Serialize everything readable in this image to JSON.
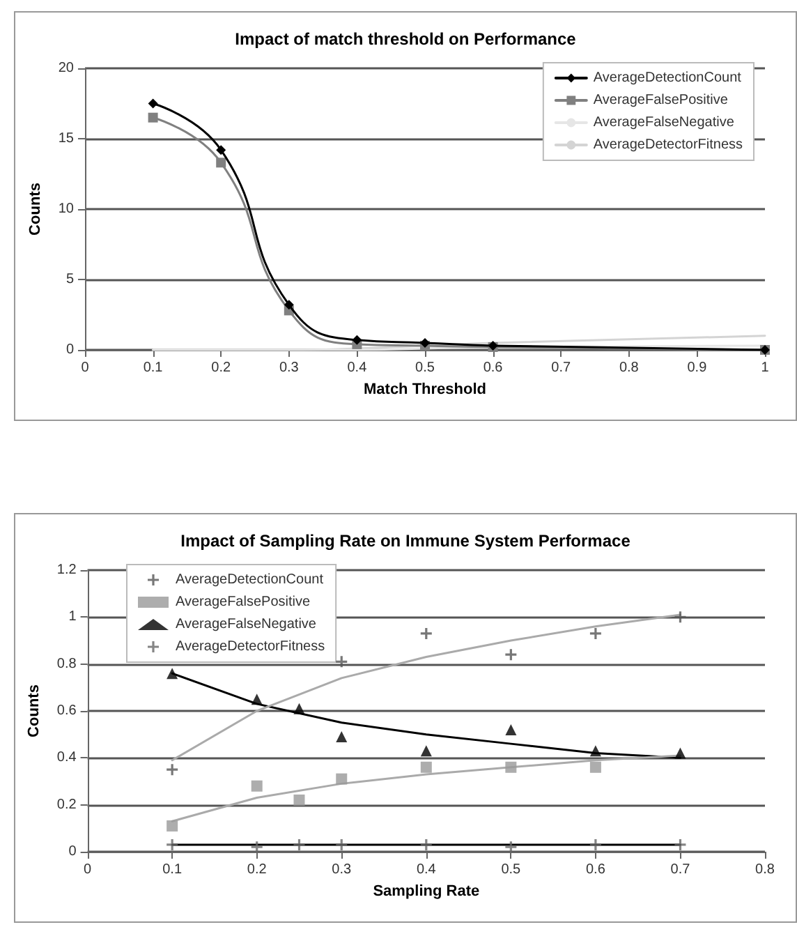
{
  "chart_data": [
    {
      "type": "line",
      "title": "Impact of match threshold on Performance",
      "xlabel": "Match Threshold",
      "ylabel": "Counts",
      "x": [
        0.1,
        0.2,
        0.3,
        0.4,
        0.5,
        0.6,
        1.0
      ],
      "series": [
        {
          "name": "AverageDetectionCount",
          "color": "#000000",
          "marker": "diamond",
          "values": [
            17.5,
            14.2,
            3.2,
            0.7,
            0.5,
            0.3,
            0
          ]
        },
        {
          "name": "AverageFalsePositive",
          "color": "#808080",
          "marker": "square",
          "values": [
            16.5,
            13.3,
            2.8,
            0.4,
            0.3,
            0.2,
            0
          ]
        },
        {
          "name": "AverageFalseNegative",
          "color": "#e6e6e6",
          "marker": "none",
          "values": [
            0,
            0,
            0,
            0,
            0.1,
            0.2,
            0.3
          ]
        },
        {
          "name": "AverageDetectorFitness",
          "color": "#d4d4d4",
          "marker": "none",
          "values": [
            0,
            0,
            0,
            0.1,
            0.3,
            0.5,
            1.0
          ]
        }
      ],
      "xlim": [
        0,
        1
      ],
      "xticks": [
        0,
        0.1,
        0.2,
        0.3,
        0.4,
        0.5,
        0.6,
        0.7,
        0.8,
        0.9,
        1
      ],
      "ylim": [
        0,
        20
      ],
      "yticks": [
        0,
        5,
        10,
        15,
        20
      ],
      "grid": "y",
      "legend": "top right",
      "line_style": "solid"
    },
    {
      "type": "scatter",
      "title": "Impact of Sampling Rate on Immune System Performace",
      "xlabel": "Sampling Rate",
      "ylabel": "Counts",
      "series": [
        {
          "name": "AverageDetectionCount",
          "color": "#555555",
          "marker": "cross",
          "x": [
            0.1,
            0.3,
            0.4,
            0.5,
            0.6,
            0.7
          ],
          "values": [
            0.35,
            0.81,
            0.93,
            0.84,
            0.93,
            1.0
          ]
        },
        {
          "name": "AverageFalsePositive",
          "color": "#999999",
          "marker": "square",
          "x": [
            0.1,
            0.2,
            0.25,
            0.3,
            0.4,
            0.5,
            0.6
          ],
          "values": [
            0.11,
            0.28,
            0.22,
            0.31,
            0.36,
            0.36,
            0.36
          ]
        },
        {
          "name": "AverageFalseNegative",
          "color": "#000000",
          "marker": "triangle",
          "x": [
            0.1,
            0.2,
            0.25,
            0.3,
            0.4,
            0.5,
            0.6,
            0.7
          ],
          "values": [
            0.76,
            0.65,
            0.61,
            0.49,
            0.43,
            0.52,
            0.43,
            0.42
          ]
        },
        {
          "name": "AverageDetectorFitness",
          "color": "#666666",
          "marker": "cross",
          "x": [
            0.1,
            0.2,
            0.25,
            0.3,
            0.4,
            0.5,
            0.6,
            0.7
          ],
          "values": [
            0.03,
            0.02,
            0.03,
            0.03,
            0.03,
            0.02,
            0.03,
            0.03
          ]
        },
        {
          "type": "line",
          "color": "#aaaaaa",
          "marker": "none",
          "x": [
            0.1,
            0.2,
            0.3,
            0.4,
            0.5,
            0.6,
            0.7
          ],
          "values": [
            0.39,
            0.6,
            0.74,
            0.83,
            0.9,
            0.96,
            1.01
          ]
        },
        {
          "type": "line",
          "color": "#aaaaaa",
          "marker": "none",
          "x": [
            0.1,
            0.2,
            0.3,
            0.4,
            0.5,
            0.6,
            0.7
          ],
          "values": [
            0.13,
            0.23,
            0.29,
            0.33,
            0.36,
            0.39,
            0.41
          ]
        },
        {
          "type": "line",
          "color": "#000000",
          "marker": "none",
          "x": [
            0.1,
            0.2,
            0.3,
            0.4,
            0.5,
            0.6,
            0.7
          ],
          "values": [
            0.76,
            0.63,
            0.55,
            0.5,
            0.46,
            0.42,
            0.4
          ]
        },
        {
          "type": "line",
          "color": "#000000",
          "marker": "none",
          "x": [
            0.1,
            0.7
          ],
          "values": [
            0.03,
            0.03
          ]
        }
      ],
      "xlim": [
        0,
        0.8
      ],
      "xticks": [
        0,
        0.1,
        0.2,
        0.3,
        0.4,
        0.5,
        0.6,
        0.7,
        0.8
      ],
      "ylim": [
        0,
        1.2
      ],
      "yticks": [
        0,
        0.2,
        0.4,
        0.6,
        0.8,
        1,
        1.2
      ],
      "grid": "y",
      "legend": "top left",
      "line_style": "solid"
    }
  ]
}
